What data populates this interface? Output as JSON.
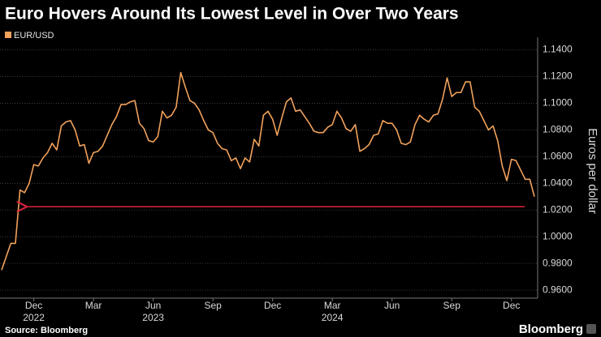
{
  "chart_data": {
    "type": "line",
    "title": "Euro Hovers Around Its Lowest Level in Over Two Years",
    "y_axis_label": "Euros per dollar",
    "source": "Source: Bloomberg",
    "brand": "Bloomberg",
    "categories": [
      null,
      null,
      null,
      null,
      null,
      null,
      null,
      "Dec",
      null,
      null,
      null,
      null,
      null,
      null,
      null,
      null,
      null,
      null,
      null,
      null,
      "Mar",
      null,
      null,
      null,
      null,
      null,
      null,
      null,
      null,
      null,
      null,
      null,
      null,
      "Jun",
      null,
      null,
      null,
      null,
      null,
      null,
      null,
      null,
      null,
      null,
      null,
      null,
      "Sep",
      null,
      null,
      null,
      null,
      null,
      null,
      null,
      null,
      null,
      null,
      null,
      null,
      "Dec",
      null,
      null,
      null,
      null,
      null,
      null,
      null,
      null,
      null,
      null,
      null,
      null,
      "Mar",
      null,
      null,
      null,
      null,
      null,
      null,
      null,
      null,
      null,
      null,
      null,
      null,
      "Jun",
      null,
      null,
      null,
      null,
      null,
      null,
      null,
      null,
      null,
      null,
      null,
      null,
      "Sep",
      null,
      null,
      null,
      null,
      null,
      null,
      null,
      null,
      null,
      null,
      null,
      null,
      "Dec",
      null,
      null,
      null,
      null,
      null
    ],
    "year_labels": [
      "2022",
      "2023",
      "2024"
    ],
    "series": [
      {
        "name": "EUR/USD",
        "color": "#f2a25c",
        "values": [
          0.975,
          0.985,
          0.995,
          0.995,
          1.035,
          1.033,
          1.04,
          1.054,
          1.053,
          1.059,
          1.063,
          1.07,
          1.065,
          1.083,
          1.086,
          1.087,
          1.08,
          1.068,
          1.069,
          1.055,
          1.063,
          1.064,
          1.068,
          1.076,
          1.084,
          1.09,
          1.099,
          1.099,
          1.101,
          1.102,
          1.085,
          1.081,
          1.072,
          1.071,
          1.075,
          1.094,
          1.089,
          1.091,
          1.097,
          1.123,
          1.112,
          1.102,
          1.1,
          1.095,
          1.087,
          1.08,
          1.078,
          1.07,
          1.066,
          1.065,
          1.057,
          1.059,
          1.051,
          1.059,
          1.056,
          1.073,
          1.068,
          1.091,
          1.094,
          1.088,
          1.076,
          1.089,
          1.101,
          1.104,
          1.094,
          1.095,
          1.09,
          1.085,
          1.079,
          1.078,
          1.078,
          1.082,
          1.084,
          1.094,
          1.089,
          1.081,
          1.079,
          1.084,
          1.064,
          1.066,
          1.069,
          1.076,
          1.077,
          1.087,
          1.085,
          1.085,
          1.08,
          1.07,
          1.069,
          1.071,
          1.084,
          1.091,
          1.088,
          1.086,
          1.091,
          1.092,
          1.103,
          1.119,
          1.105,
          1.108,
          1.108,
          1.116,
          1.116,
          1.097,
          1.094,
          1.087,
          1.08,
          1.083,
          1.072,
          1.053,
          1.042,
          1.058,
          1.057,
          1.05,
          1.043,
          1.043,
          1.03
        ]
      }
    ],
    "annotations": [
      {
        "type": "arrow",
        "value": 1.0225,
        "color": "#e0243f"
      }
    ],
    "ylim": [
      0.954,
      1.147
    ],
    "yticks": [
      {
        "value": 0.96,
        "label": "0.9600"
      },
      {
        "value": 0.98,
        "label": "0.9800"
      },
      {
        "value": 1.0,
        "label": "1.0000"
      },
      {
        "value": 1.02,
        "label": "1.0200"
      },
      {
        "value": 1.04,
        "label": "1.0400"
      },
      {
        "value": 1.06,
        "label": "1.0600"
      },
      {
        "value": 1.08,
        "label": "1.0800"
      },
      {
        "value": 1.1,
        "label": "1.1000"
      },
      {
        "value": 1.12,
        "label": "1.1200"
      },
      {
        "value": 1.14,
        "label": "1.1400"
      }
    ],
    "y_axis_side": "right",
    "grid": true
  }
}
